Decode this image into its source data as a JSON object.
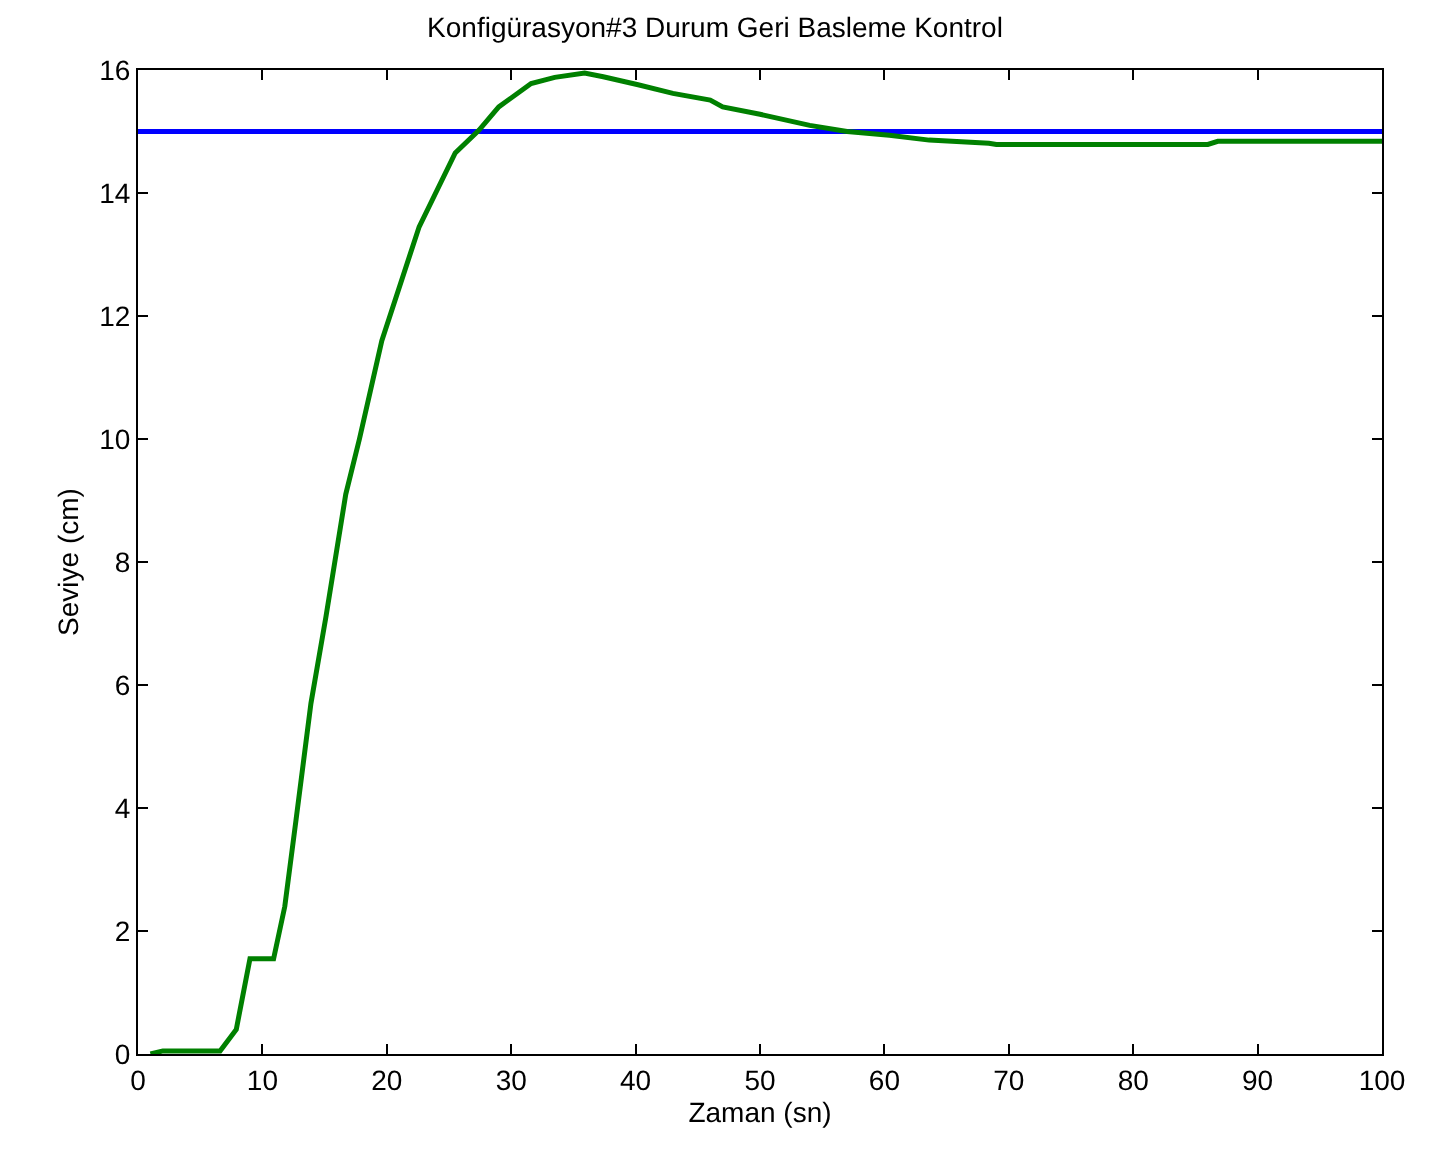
{
  "chart_data": {
    "type": "line",
    "title": "Konfigürasyon#3 Durum Geri Basleme Kontrol",
    "xlabel": "Zaman (sn)",
    "ylabel": "Seviye (cm)",
    "xlim": [
      0,
      100
    ],
    "ylim": [
      0,
      16
    ],
    "xticks": [
      0,
      10,
      20,
      30,
      40,
      50,
      60,
      70,
      80,
      90,
      100
    ],
    "yticks": [
      0,
      2,
      4,
      6,
      8,
      10,
      12,
      14,
      16
    ],
    "marker": "none",
    "line_style": "solid",
    "series": [
      {
        "color": "#0000ff",
        "x": [
          0,
          100
        ],
        "values": [
          15,
          15
        ]
      },
      {
        "color": "#008000",
        "x": [
          1,
          2,
          6.6,
          7.9,
          9,
          10.9,
          11.8,
          12.7,
          13.9,
          15.1,
          16.7,
          17.8,
          19.6,
          22.6,
          25.5,
          27.4,
          29,
          31.6,
          33.5,
          35.9,
          37.4,
          40.2,
          43,
          46,
          47,
          50,
          54,
          57,
          60.4,
          63.6,
          68.4,
          69,
          86,
          86.8,
          100
        ],
        "values": [
          0,
          0.05,
          0.05,
          0.4,
          1.55,
          1.55,
          2.4,
          3.8,
          5.7,
          7.1,
          9.1,
          10,
          11.6,
          13.45,
          14.65,
          15.02,
          15.4,
          15.78,
          15.88,
          15.95,
          15.89,
          15.76,
          15.62,
          15.51,
          15.4,
          15.28,
          15.1,
          15.0,
          14.94,
          14.86,
          14.81,
          14.79,
          14.79,
          14.84,
          14.84
        ]
      }
    ]
  }
}
